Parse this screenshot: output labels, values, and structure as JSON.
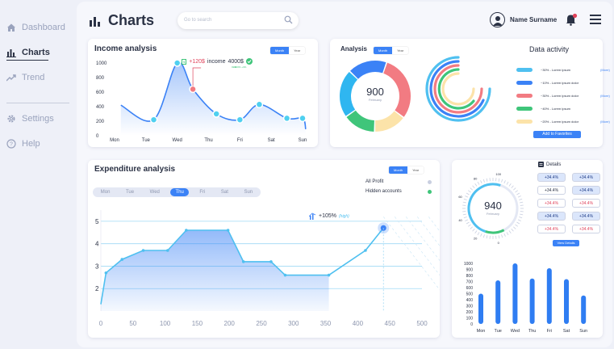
{
  "sidebar": {
    "items": [
      {
        "label": "Dashboard",
        "icon": "home-icon"
      },
      {
        "label": "Charts",
        "icon": "bar-chart-icon",
        "active": true
      },
      {
        "label": "Trend",
        "icon": "trend-icon"
      },
      {
        "label": "Settings",
        "icon": "gear-icon"
      },
      {
        "label": "Help",
        "icon": "help-icon"
      }
    ]
  },
  "header": {
    "title": "Charts",
    "search_placeholder": "Go to search",
    "user_name": "Name Surname"
  },
  "income": {
    "title": "Income analysis",
    "toggle": [
      "Month",
      "Year"
    ],
    "tooltip": {
      "amount": "+120$",
      "label": "income",
      "total": "4000$",
      "note": "+100% +4%"
    },
    "chart_data": {
      "type": "line",
      "categories": [
        "Mon",
        "Tue",
        "Wed",
        "Thu",
        "Fri",
        "Sat",
        "Sun"
      ],
      "yticks": [
        0,
        200,
        400,
        600,
        800,
        1000
      ],
      "ylim": [
        0,
        1000
      ],
      "x": [
        0.2,
        1.25,
        2,
        2.5,
        3.25,
        4,
        4.62,
        5.5,
        6
      ],
      "values": [
        420,
        220,
        1000,
        640,
        300,
        220,
        430,
        240,
        240
      ],
      "x_end": 6.1,
      "y_end": 90
    }
  },
  "analysis": {
    "title": "Analysis",
    "toggle": [
      "Month",
      "Year"
    ],
    "center_value": "900",
    "center_label": "February",
    "segments": [
      {
        "value": 30,
        "color": "#f27b82"
      },
      {
        "value": 15,
        "color": "#fce3a9"
      },
      {
        "value": 15,
        "color": "#3fc57a"
      },
      {
        "value": 22,
        "color": "#2fb6f0"
      },
      {
        "value": 18,
        "color": "#3b82f6"
      }
    ]
  },
  "activity": {
    "title": "Data activity",
    "rows": [
      {
        "value": "~30% - Lorem ipsum",
        "more": "(More)",
        "color": "#4fc0f0"
      },
      {
        "value": "~10% - Lorem ipsum dolor",
        "more": "",
        "color": "#3b82f6"
      },
      {
        "value": "~30% - Lorem ipsum dolor",
        "more": "(More)",
        "color": "#f27b82"
      },
      {
        "value": "~40% - Lorem ipsum",
        "more": "",
        "color": "#3fc57a"
      },
      {
        "value": "~20% - Lorem ipsum dolor",
        "more": "(More)",
        "color": "#fce3a9"
      }
    ],
    "button": "Add to Favorites"
  },
  "expenditure": {
    "title": "Expenditure analysis",
    "toggle": [
      "Month",
      "Year"
    ],
    "days": [
      "Mon",
      "Tue",
      "Wed",
      "Thu",
      "Fri",
      "Sat",
      "Sun"
    ],
    "active_day": "Thu",
    "legend": [
      {
        "label": "All Profit",
        "color": "#c9cfe0"
      },
      {
        "label": "Hidden accounts",
        "color": "#3fc57a"
      }
    ],
    "annotation": {
      "value": "+105%",
      "label": "(high)"
    },
    "chart_data": {
      "type": "area",
      "xlabel": "",
      "ylabel": "",
      "xticks": [
        0,
        50,
        100,
        150,
        200,
        250,
        300,
        350,
        400,
        450,
        500
      ],
      "yticks": [
        2,
        3,
        4,
        5
      ],
      "xlim": [
        0,
        500
      ],
      "ylim": [
        1,
        5.5
      ],
      "x": [
        0,
        8,
        33,
        66,
        104,
        133,
        198,
        222,
        265,
        287,
        355,
        412,
        440
      ],
      "y": [
        1.3,
        2.7,
        3.3,
        3.7,
        3.7,
        4.6,
        4.6,
        3.2,
        3.2,
        2.6,
        2.6,
        3.7,
        4.7
      ]
    }
  },
  "details": {
    "title": "Details",
    "gauge_value": "940",
    "gauge_label": "February",
    "gauge_ticks": [
      "100",
      "80",
      "60",
      "40",
      "20",
      "0"
    ],
    "pills": [
      [
        "+34.4%",
        "+34.4%"
      ],
      [
        "+34.4%",
        "+34.4%"
      ],
      [
        "+34.4%",
        "+34.4%"
      ],
      [
        "+34.4%",
        "+34.4%"
      ],
      [
        "+34.4%",
        "+34.4%"
      ]
    ],
    "button": "View Details",
    "chart_data": {
      "type": "bar",
      "categories": [
        "Mon",
        "Tue",
        "Wed",
        "Thu",
        "Fri",
        "Sat",
        "Sun"
      ],
      "values": [
        500,
        720,
        1000,
        750,
        920,
        740,
        470
      ],
      "yticks": [
        0,
        100,
        200,
        300,
        400,
        500,
        600,
        700,
        800,
        900,
        1000
      ],
      "ylim": [
        0,
        1000
      ]
    }
  }
}
